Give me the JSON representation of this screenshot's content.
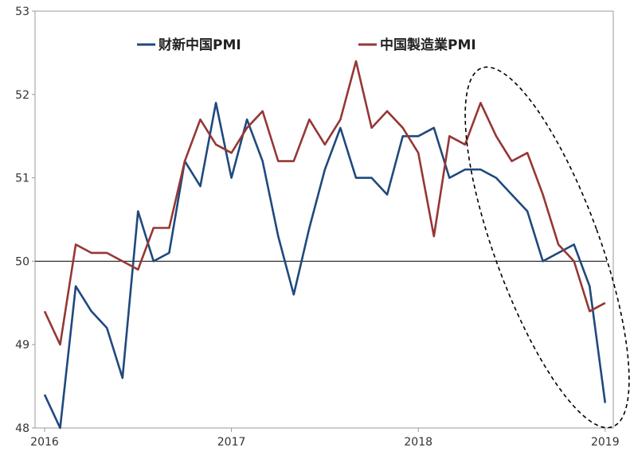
{
  "chart_data": {
    "type": "line",
    "title": "",
    "xlabel": "",
    "ylabel": "",
    "ylim": [
      48,
      53
    ],
    "y_ticks": [
      "48",
      "49",
      "50",
      "51",
      "52",
      "53"
    ],
    "x_ticks": [
      "2016",
      "2017",
      "2018",
      "2019"
    ],
    "reference_line": 50,
    "grid": false,
    "legend_position": "top",
    "annotation": "dashed ellipse highlighting the latest months",
    "x": [
      "2016-01",
      "2016-02",
      "2016-03",
      "2016-04",
      "2016-05",
      "2016-06",
      "2016-07",
      "2016-08",
      "2016-09",
      "2016-10",
      "2016-11",
      "2016-12",
      "2017-01",
      "2017-02",
      "2017-03",
      "2017-04",
      "2017-05",
      "2017-06",
      "2017-07",
      "2017-08",
      "2017-09",
      "2017-10",
      "2017-11",
      "2017-12",
      "2018-01",
      "2018-02",
      "2018-03",
      "2018-04",
      "2018-05",
      "2018-06",
      "2018-07",
      "2018-08",
      "2018-09",
      "2018-10",
      "2018-11",
      "2018-12",
      "2019-01"
    ],
    "series": [
      {
        "name": "财新中国PMI",
        "color": "#1f497d",
        "values": [
          48.4,
          48.0,
          49.7,
          49.4,
          49.2,
          48.6,
          50.6,
          50.0,
          50.1,
          51.2,
          50.9,
          51.9,
          51.0,
          51.7,
          51.2,
          50.3,
          49.6,
          50.4,
          51.1,
          51.6,
          51.0,
          51.0,
          50.8,
          51.5,
          51.5,
          51.6,
          51.0,
          51.1,
          51.1,
          51.0,
          50.8,
          50.6,
          50.0,
          50.1,
          50.2,
          49.7,
          48.3
        ]
      },
      {
        "name": "中国製造業PMI",
        "color": "#953735",
        "values": [
          49.4,
          49.0,
          50.2,
          50.1,
          50.1,
          50.0,
          49.9,
          50.4,
          50.4,
          51.2,
          51.7,
          51.4,
          51.3,
          51.6,
          51.8,
          51.2,
          51.2,
          51.7,
          51.4,
          51.7,
          52.4,
          51.6,
          51.8,
          51.6,
          51.3,
          50.3,
          51.5,
          51.4,
          51.9,
          51.5,
          51.2,
          51.3,
          50.8,
          50.2,
          50.0,
          49.4,
          49.5
        ]
      }
    ]
  }
}
